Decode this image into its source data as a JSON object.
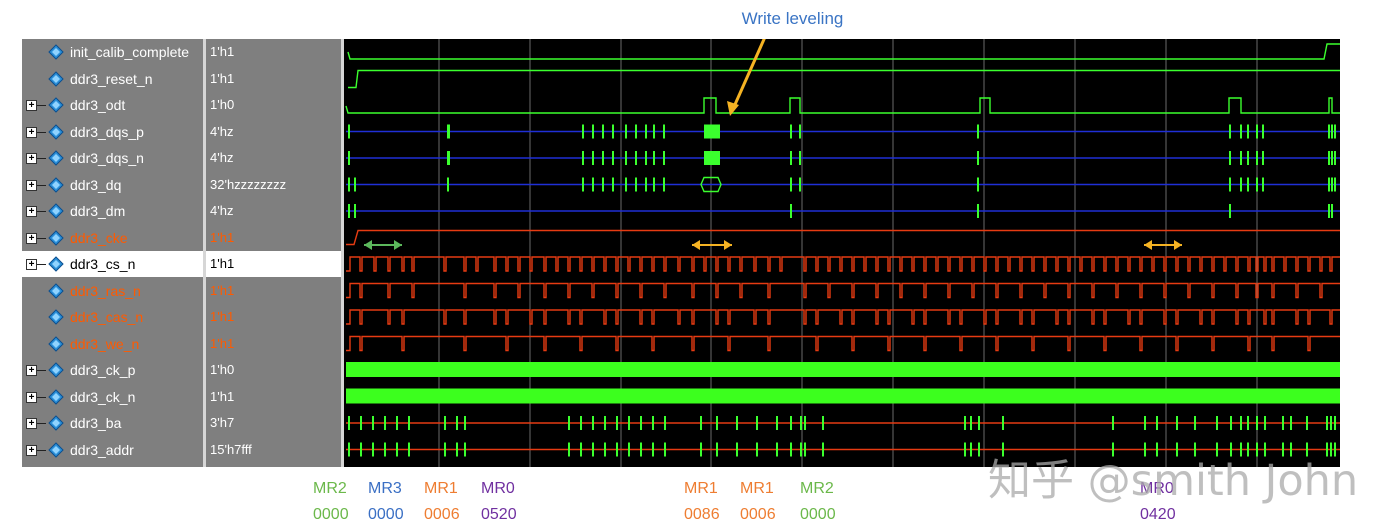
{
  "annotation": {
    "label": "Write leveling",
    "color": "#3a74c4"
  },
  "colors": {
    "normal": "#ffffff",
    "highlight": "#ff5a00",
    "wave_green": "#3bff2e",
    "wave_blue": "#1f2fd6",
    "wave_red": "#e63b12",
    "clk_green": "#3cff1e",
    "arrow_orange": "#f5b323",
    "arrow_green": "#5cb85c"
  },
  "signals": [
    {
      "name": "init_calib_complete",
      "value": "1'h1",
      "expandable": false,
      "highlight": false,
      "selected": false
    },
    {
      "name": "ddr3_reset_n",
      "value": "1'h1",
      "expandable": false,
      "highlight": false,
      "selected": false
    },
    {
      "name": "ddr3_odt",
      "value": "1'h0",
      "expandable": true,
      "highlight": false,
      "selected": false
    },
    {
      "name": "ddr3_dqs_p",
      "value": "4'hz",
      "expandable": true,
      "highlight": false,
      "selected": false
    },
    {
      "name": "ddr3_dqs_n",
      "value": "4'hz",
      "expandable": true,
      "highlight": false,
      "selected": false
    },
    {
      "name": "ddr3_dq",
      "value": "32'hzzzzzzzz",
      "expandable": true,
      "highlight": false,
      "selected": false
    },
    {
      "name": "ddr3_dm",
      "value": "4'hz",
      "expandable": true,
      "highlight": false,
      "selected": false
    },
    {
      "name": "ddr3_cke",
      "value": "1'h1",
      "expandable": true,
      "highlight": true,
      "selected": false
    },
    {
      "name": "ddr3_cs_n",
      "value": "1'h1",
      "expandable": true,
      "highlight": false,
      "selected": true
    },
    {
      "name": "ddr3_ras_n",
      "value": "1'h1",
      "expandable": false,
      "highlight": true,
      "selected": false
    },
    {
      "name": "ddr3_cas_n",
      "value": "1'h1",
      "expandable": false,
      "highlight": true,
      "selected": false
    },
    {
      "name": "ddr3_we_n",
      "value": "1'h1",
      "expandable": false,
      "highlight": true,
      "selected": false
    },
    {
      "name": "ddr3_ck_p",
      "value": "1'h0",
      "expandable": true,
      "highlight": false,
      "selected": false
    },
    {
      "name": "ddr3_ck_n",
      "value": "1'h1",
      "expandable": true,
      "highlight": false,
      "selected": false
    },
    {
      "name": "ddr3_ba",
      "value": "3'h7",
      "expandable": true,
      "highlight": false,
      "selected": false
    },
    {
      "name": "ddr3_addr",
      "value": "15'h7fff",
      "expandable": true,
      "highlight": false,
      "selected": false
    }
  ],
  "mode_registers": [
    {
      "name": "MR2",
      "value": "0000",
      "color": "#6bb84a"
    },
    {
      "name": "MR3",
      "value": "0000",
      "color": "#3a6fc4"
    },
    {
      "name": "MR1",
      "value": "0006",
      "color": "#ee7d31"
    },
    {
      "name": "MR0",
      "value": "0520",
      "color": "#7030a0"
    },
    {
      "name": "MR1",
      "value": "0086",
      "color": "#ee7d31"
    },
    {
      "name": "MR1",
      "value": "0006",
      "color": "#ee7d31"
    },
    {
      "name": "MR2",
      "value": "0000",
      "color": "#6bb84a"
    },
    {
      "name": "MR0",
      "value": "0420",
      "color": "#7030a0"
    }
  ],
  "watermark": "知乎 @smith John"
}
